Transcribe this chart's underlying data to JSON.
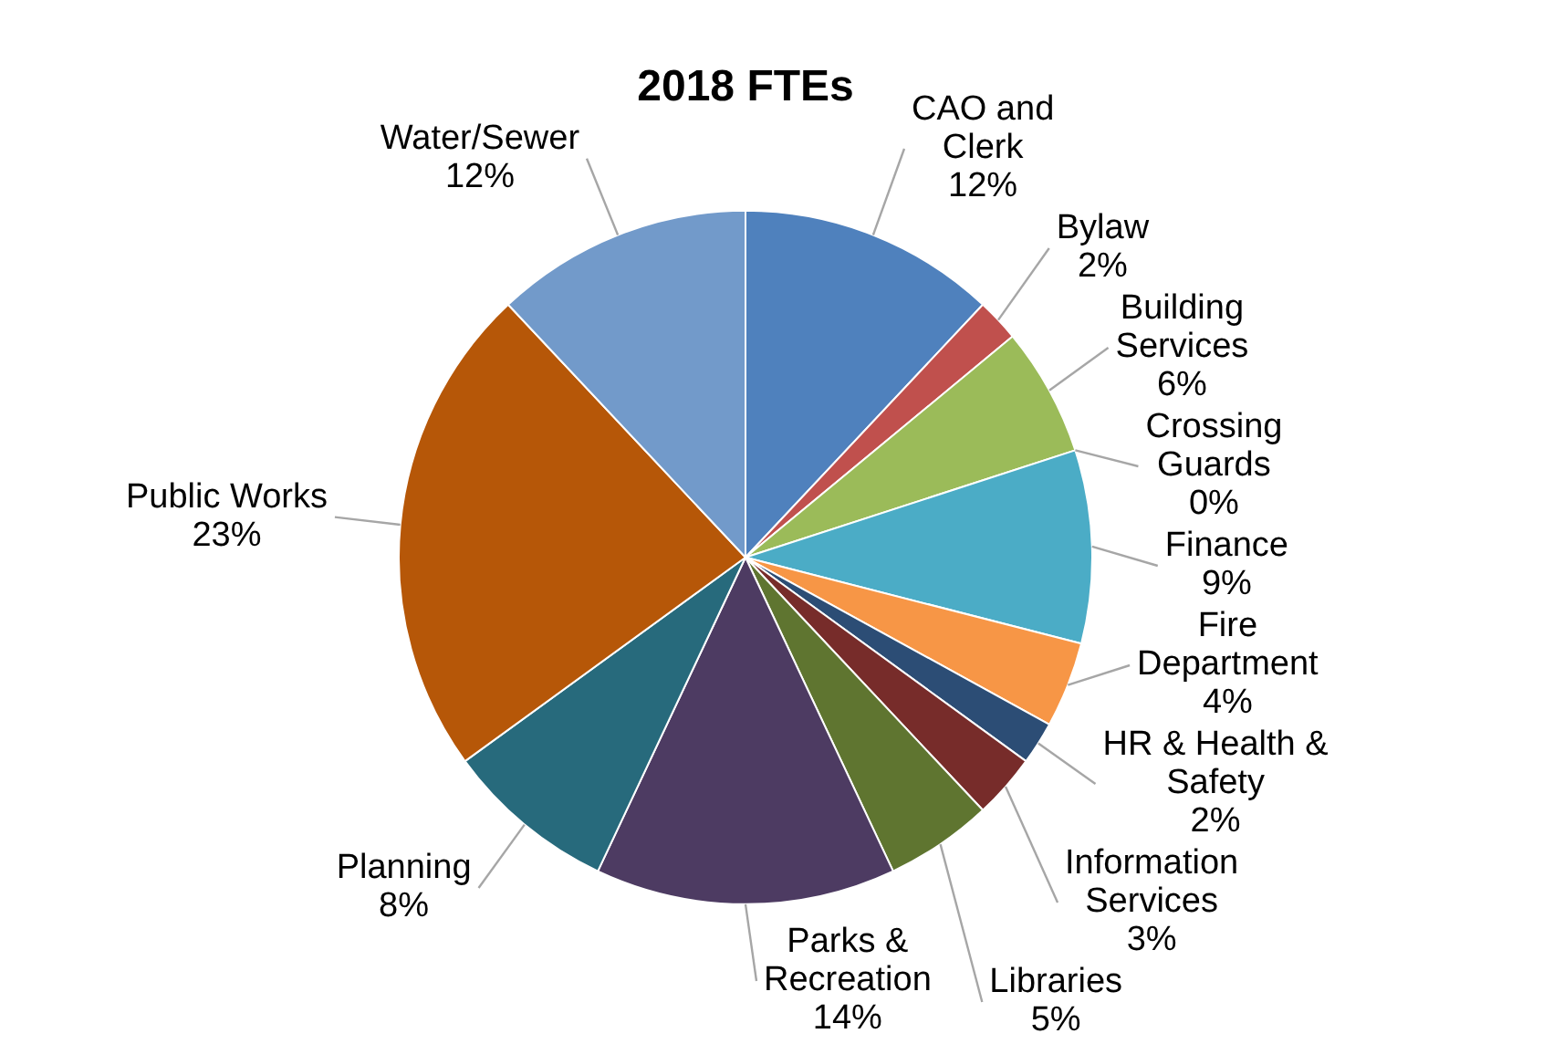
{
  "chart_data": {
    "type": "pie",
    "title": "2018 FTEs",
    "categories": [
      "CAO and Clerk",
      "Bylaw",
      "Building Services",
      "Crossing Guards",
      "Finance",
      "Fire Department",
      "HR & Health & Safety",
      "Information Services",
      "Libraries",
      "Parks & Recreation",
      "Planning",
      "Public Works",
      "Water/Sewer"
    ],
    "values": [
      12,
      2,
      6,
      0,
      9,
      4,
      2,
      3,
      5,
      14,
      8,
      23,
      12
    ],
    "value_labels": [
      "12%",
      "2%",
      "6%",
      "0%",
      "9%",
      "4%",
      "2%",
      "3%",
      "5%",
      "14%",
      "8%",
      "23%",
      "12%"
    ],
    "colors": [
      "#4f81bd",
      "#c0504d",
      "#9bbb59",
      "#8064a2",
      "#4bacc6",
      "#f79646",
      "#2c4d75",
      "#772c2a",
      "#5f7530",
      "#4d3b62",
      "#276a7c",
      "#b65708",
      "#729aca"
    ]
  }
}
